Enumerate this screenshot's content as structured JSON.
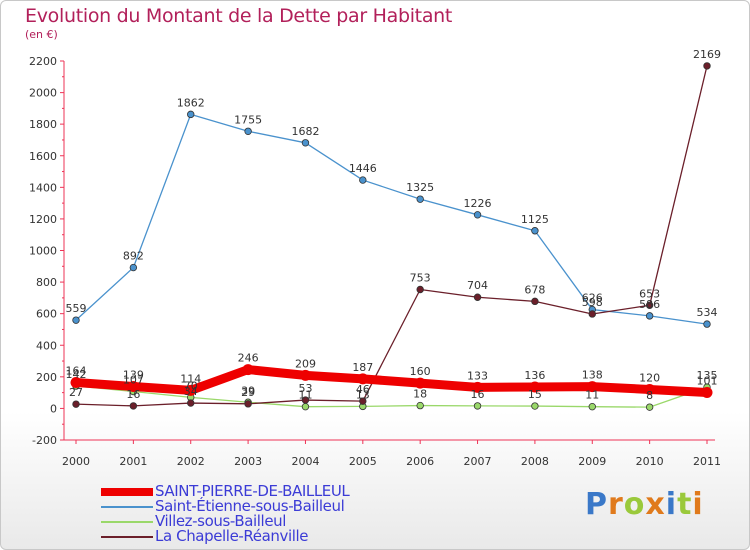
{
  "title": "Evolution du Montant de la Dette par Habitant",
  "subtitle": "(en €)",
  "logo_text": "Proxiti",
  "chart_data": {
    "type": "line",
    "title": "Evolution du Montant de la Dette par Habitant",
    "ylabel": "(en €)",
    "x": [
      "2000",
      "2001",
      "2002",
      "2003",
      "2004",
      "2005",
      "2006",
      "2007",
      "2008",
      "2009",
      "2010",
      "2011"
    ],
    "ylim": [
      -200,
      2200
    ],
    "yticks": [
      "-200",
      "0",
      "200",
      "400",
      "600",
      "800",
      "1000",
      "1200",
      "1400",
      "1600",
      "1800",
      "2000",
      "2200"
    ],
    "grid": false,
    "legend_position": "bottom-left",
    "series": [
      {
        "name": "SAINT-PIERRE-DE-BAILLEUL",
        "color": "#ee0000",
        "values": [
          164,
          139,
          114,
          246,
          209,
          187,
          160,
          133,
          136,
          138,
          120,
          101
        ],
        "labels": [
          "164",
          "139",
          "114",
          "246",
          "209",
          "187",
          "160",
          "133",
          "136",
          "138",
          "120",
          "101"
        ]
      },
      {
        "name": "Saint-Étienne-sous-Bailleul",
        "color": "#4a92cd",
        "values": [
          559,
          892,
          1862,
          1755,
          1682,
          1446,
          1325,
          1226,
          1125,
          626,
          586,
          534
        ],
        "labels": [
          "559",
          "892",
          "1862",
          "1755",
          "1682",
          "1446",
          "1325",
          "1226",
          "1125",
          "626",
          "586",
          "534"
        ]
      },
      {
        "name": "Villez-sous-Bailleul",
        "color": "#9ad86a",
        "values": [
          142,
          107,
          70,
          39,
          11,
          13,
          18,
          16,
          15,
          11,
          8,
          135
        ],
        "labels": [
          "142",
          "107",
          "70",
          "39",
          "11",
          "13",
          "18",
          "16",
          "15",
          "11",
          "8",
          "135"
        ]
      },
      {
        "name": "La Chapelle-Réanville",
        "color": "#6b1f2a",
        "values": [
          27,
          16,
          34,
          29,
          53,
          46,
          753,
          704,
          678,
          598,
          653,
          2169
        ],
        "labels": [
          "27",
          "16",
          "34",
          "29",
          "53",
          "46",
          "753",
          "704",
          "678",
          "598",
          "653",
          "2169"
        ]
      }
    ]
  }
}
